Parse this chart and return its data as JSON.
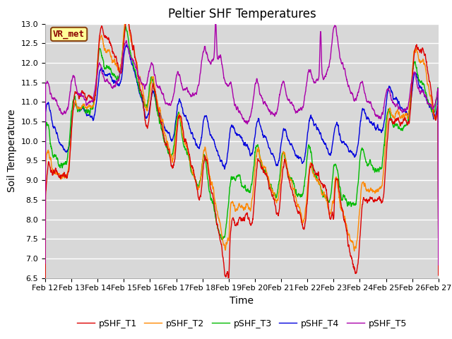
{
  "title": "Peltier SHF Temperatures",
  "xlabel": "Time",
  "ylabel": "Soil Temperature",
  "ylim": [
    6.5,
    13.0
  ],
  "yticks": [
    6.5,
    7.0,
    7.5,
    8.0,
    8.5,
    9.0,
    9.5,
    10.0,
    10.5,
    11.0,
    11.5,
    12.0,
    12.5,
    13.0
  ],
  "xtick_labels": [
    "Feb 12",
    "Feb 13",
    "Feb 14",
    "Feb 15",
    "Feb 16",
    "Feb 17",
    "Feb 18",
    "Feb 19",
    "Feb 20",
    "Feb 21",
    "Feb 22",
    "Feb 23",
    "Feb 24",
    "Feb 25",
    "Feb 26",
    "Feb 27"
  ],
  "series_colors": {
    "pSHF_T1": "#dd0000",
    "pSHF_T2": "#ff8800",
    "pSHF_T3": "#00bb00",
    "pSHF_T4": "#0000dd",
    "pSHF_T5": "#aa00aa"
  },
  "annotation_text": "VR_met",
  "annotation_color": "#8b0000",
  "annotation_bg": "#ffff99",
  "annotation_border": "#8b4513",
  "plot_bg_color": "#d8d8d8",
  "fig_bg_color": "#ffffff",
  "grid_color": "#ffffff",
  "title_fontsize": 12,
  "legend_fontsize": 9,
  "tick_fontsize": 8,
  "axis_label_fontsize": 10
}
